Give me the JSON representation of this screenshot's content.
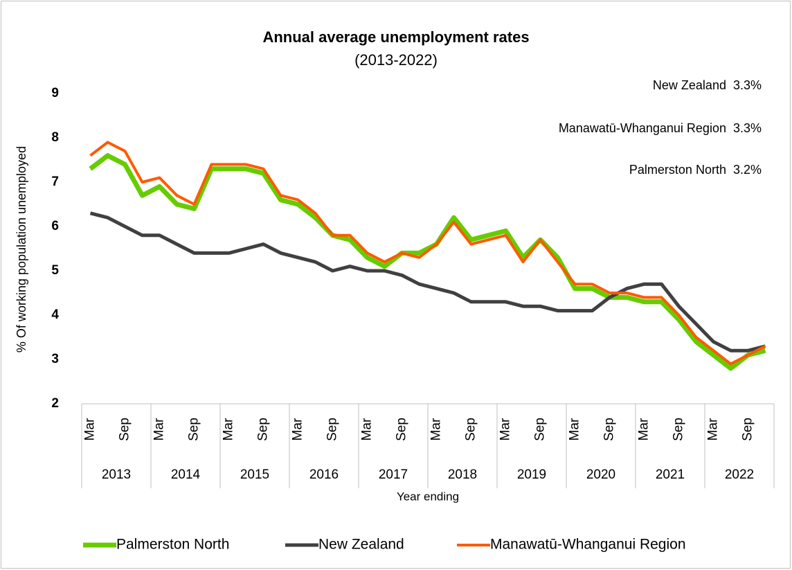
{
  "chart_data": {
    "type": "line",
    "title": "Annual average unemployment rates",
    "subtitle": "(2013-2022)",
    "ylabel": "% Of working population unemployed",
    "xlabel": "Year ending",
    "categories": [
      "Mar",
      null,
      "Sep",
      null,
      "Mar",
      null,
      "Sep",
      null,
      "Mar",
      null,
      "Sep",
      null,
      "Mar",
      null,
      "Sep",
      null,
      "Mar",
      null,
      "Sep",
      null,
      "Mar",
      null,
      "Sep",
      null,
      "Mar",
      null,
      "Sep",
      null,
      "Mar",
      null,
      "Sep",
      null,
      "Mar",
      null,
      "Sep",
      null,
      "Mar",
      null,
      "Sep",
      null
    ],
    "years": [
      "2013",
      "2014",
      "2015",
      "2016",
      "2017",
      "2018",
      "2019",
      "2020",
      "2021",
      "2022"
    ],
    "ylim": [
      2,
      9
    ],
    "yticks": [
      2,
      3,
      4,
      5,
      6,
      7,
      8,
      9
    ],
    "grid": false,
    "legend": "bottom",
    "annotations": [
      "New Zealand  3.3%",
      "Manawatū-Whanganui Region  3.3%",
      "Palmerston North  3.2%"
    ],
    "series": [
      {
        "name": "Palmerston North",
        "color": "#66cc00",
        "values": [
          7.3,
          7.6,
          7.4,
          6.7,
          6.9,
          6.5,
          6.4,
          7.3,
          7.3,
          7.3,
          7.2,
          6.6,
          6.5,
          6.2,
          5.8,
          5.7,
          5.3,
          5.1,
          5.4,
          5.4,
          5.6,
          6.2,
          5.7,
          5.8,
          5.9,
          5.3,
          5.7,
          5.3,
          4.6,
          4.6,
          4.4,
          4.4,
          4.3,
          4.3,
          3.9,
          3.4,
          3.1,
          2.8,
          3.1,
          3.2
        ]
      },
      {
        "name": "New Zealand",
        "color": "#404040",
        "values": [
          6.3,
          6.2,
          6.0,
          5.8,
          5.8,
          5.6,
          5.4,
          5.4,
          5.4,
          5.5,
          5.6,
          5.4,
          5.3,
          5.2,
          5.0,
          5.1,
          5.0,
          5.0,
          4.9,
          4.7,
          4.6,
          4.5,
          4.3,
          4.3,
          4.3,
          4.2,
          4.2,
          4.1,
          4.1,
          4.1,
          4.4,
          4.6,
          4.7,
          4.7,
          4.2,
          3.8,
          3.4,
          3.2,
          3.2,
          3.3
        ]
      },
      {
        "name": "Manawatū-Whanganui Region",
        "color": "#ff5a00",
        "values": [
          7.6,
          7.9,
          7.7,
          7.0,
          7.1,
          6.7,
          6.5,
          7.4,
          7.4,
          7.4,
          7.3,
          6.7,
          6.6,
          6.3,
          5.8,
          5.8,
          5.4,
          5.2,
          5.4,
          5.3,
          5.6,
          6.1,
          5.6,
          5.7,
          5.8,
          5.2,
          5.7,
          5.2,
          4.7,
          4.7,
          4.5,
          4.5,
          4.4,
          4.4,
          4.0,
          3.5,
          3.2,
          2.9,
          3.1,
          3.3
        ]
      }
    ]
  }
}
